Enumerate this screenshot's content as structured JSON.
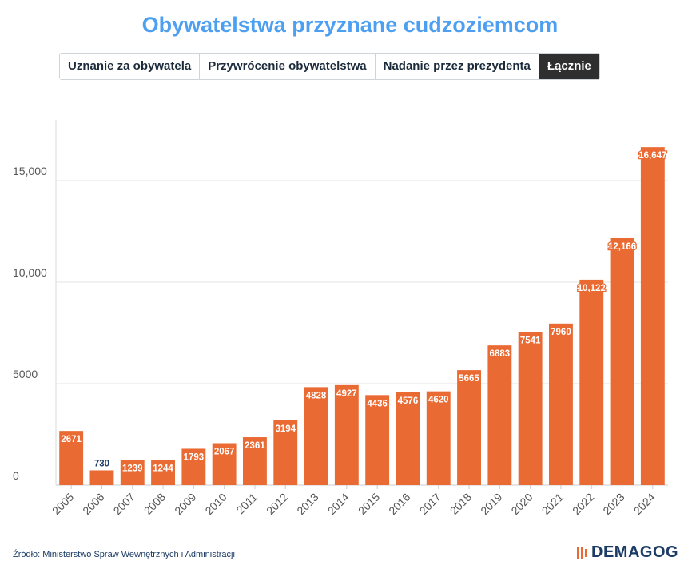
{
  "title": "Obywatelstwa przyznane cudzoziemcom",
  "tabs": [
    {
      "label": "Uznanie za obywatela",
      "active": false
    },
    {
      "label": "Przywrócenie obywatelstwa",
      "active": false
    },
    {
      "label": "Nadanie przez prezydenta",
      "active": false
    },
    {
      "label": "Łącznie",
      "active": true
    }
  ],
  "source": "Źródło: Ministerstwo Spraw Wewnętrznych i Administracji",
  "logo": "DEMAGOG",
  "colors": {
    "bar": "#ea6a33",
    "title": "#4d9ff2",
    "grid": "#e3e3e3",
    "logo_accent": "#ea6a33"
  },
  "chart_data": {
    "type": "bar",
    "title": "Obywatelstwa przyznane cudzoziemcom",
    "xlabel": "",
    "ylabel": "",
    "categories": [
      "2005",
      "2006",
      "2007",
      "2008",
      "2009",
      "2010",
      "2011",
      "2012",
      "2013",
      "2014",
      "2015",
      "2016",
      "2017",
      "2018",
      "2019",
      "2020",
      "2021",
      "2022",
      "2023",
      "2024"
    ],
    "values": [
      2671,
      730,
      1239,
      1244,
      1793,
      2067,
      2361,
      3194,
      4828,
      4927,
      4436,
      4576,
      4620,
      5665,
      6883,
      7541,
      7960,
      10122,
      12166,
      16647
    ],
    "value_labels": [
      "2671",
      "730",
      "1239",
      "1244",
      "1793",
      "2067",
      "2361",
      "3194",
      "4828",
      "4927",
      "4436",
      "4576",
      "4620",
      "5665",
      "6883",
      "7541",
      "7960",
      "10,122",
      "12,166",
      "16,647"
    ],
    "y_ticks": [
      0,
      5000,
      10000,
      15000
    ],
    "y_tick_labels": [
      "0",
      "5000",
      "10,000",
      "15,000"
    ],
    "ylim": [
      0,
      18000
    ],
    "grid": true
  }
}
